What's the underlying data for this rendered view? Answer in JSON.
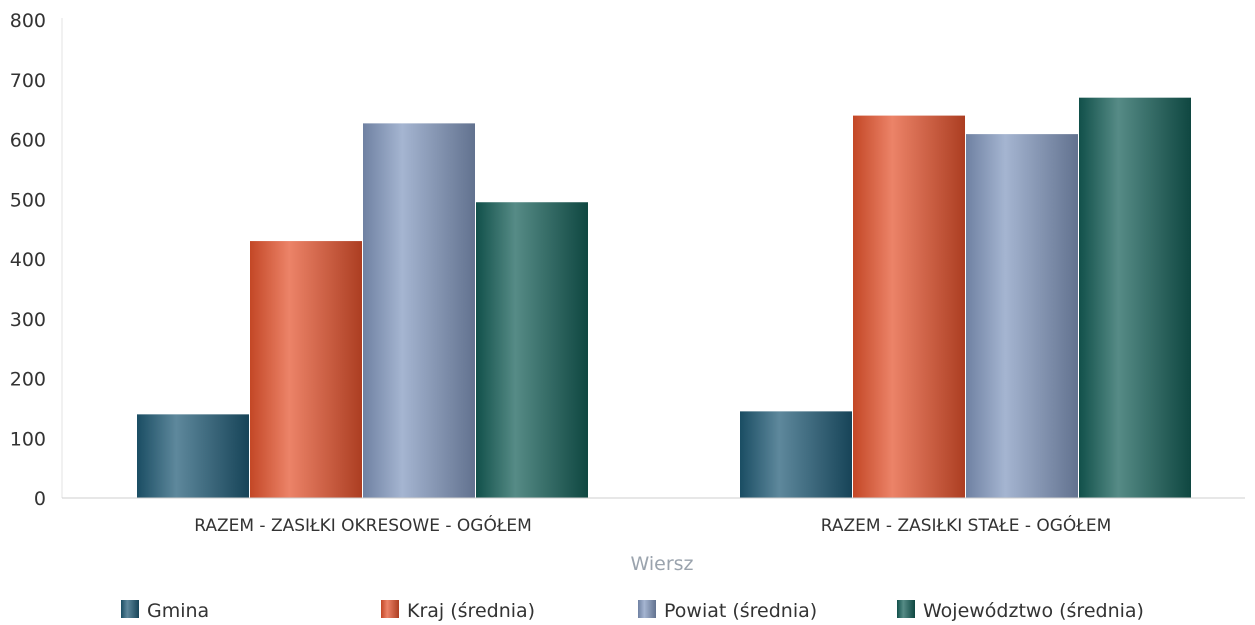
{
  "chart_data": {
    "type": "bar",
    "categories": [
      "RAZEM -  ZASIŁKI OKRESOWE - OGÓŁEM",
      "RAZEM -  ZASIŁKI STAŁE - OGÓŁEM"
    ],
    "xlabel": "Wiersz",
    "ylabel": "",
    "ylim": [
      0,
      800
    ],
    "yticks": [
      0,
      100,
      200,
      300,
      400,
      500,
      600,
      700,
      800
    ],
    "grid": false,
    "legend_placement": "bottom",
    "series": [
      {
        "name": "Gmina",
        "values": [
          140,
          145
        ],
        "color": "#1f5a75"
      },
      {
        "name": "Kraj (średnia)",
        "values": [
          430,
          640
        ],
        "color": "#e5532d"
      },
      {
        "name": "Powiat (średnia)",
        "values": [
          627,
          609
        ],
        "color": "#8298bf"
      },
      {
        "name": "Województwo (średnia)",
        "values": [
          495,
          670
        ],
        "color": "#145e57"
      }
    ]
  }
}
